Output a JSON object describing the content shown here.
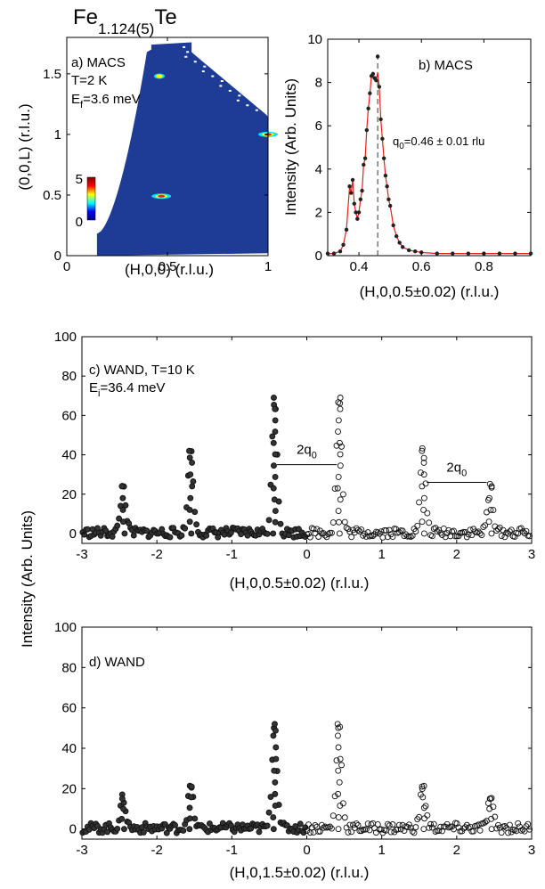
{
  "figure": {
    "title_main": "Fe",
    "title_sub": "1.124(5)",
    "title_tail": "Te",
    "shared_ylabel": "Intensity (Arb. Units)"
  },
  "chart_data": [
    {
      "panel": "a",
      "type": "heatmap",
      "annotation": "a) MACS",
      "annotation_lines": [
        "T=2 K",
        "E",
        "f",
        "=3.6 meV"
      ],
      "xlabel": "(H,0,0) (r.l.u.)",
      "ylabel": "(0,0,L) (r.l.u.)",
      "xlim": [
        0,
        1
      ],
      "ylim": [
        0,
        1.8
      ],
      "xticks": [
        0,
        0.5,
        1
      ],
      "xtick_labels": [
        "0",
        "0.5",
        "1"
      ],
      "yticks": [
        0,
        0.5,
        1,
        1.5
      ],
      "ytick_labels": [
        "0",
        "0.5",
        "1",
        "1.5"
      ],
      "colorbar": {
        "min": 0,
        "max": 5,
        "tick_labels": [
          "5",
          "0"
        ]
      },
      "colormap": [
        "#00007f",
        "#0000ff",
        "#00ffff",
        "#ffff00",
        "#ff0000",
        "#7f0000"
      ],
      "background_color": "#1e3c96",
      "hot_spots": [
        {
          "h": 0.47,
          "l": 0.49,
          "level": 5
        },
        {
          "h": 0.46,
          "l": 1.48,
          "level": 2
        },
        {
          "h": 1.0,
          "l": 1.0,
          "level": 4
        }
      ]
    },
    {
      "panel": "b",
      "type": "scatter",
      "annotation": "b) MACS",
      "xlabel": "(H,0,0.5±0.02) (r.l.u.)",
      "ylabel": "Intensity (Arb. Units)",
      "xlim": [
        0.3,
        0.95
      ],
      "ylim": [
        0,
        10
      ],
      "xticks": [
        0.4,
        0.6,
        0.8
      ],
      "xtick_labels": [
        "0.4",
        "0.6",
        "0.8"
      ],
      "yticks": [
        0,
        2,
        4,
        6,
        8,
        10
      ],
      "ytick_labels": [
        "0",
        "2",
        "4",
        "6",
        "8",
        "10"
      ],
      "q0_label": "q",
      "q0_sub": "0",
      "q0_value": "=0.46 ± 0.01 rlu",
      "dashed_line_x": 0.46,
      "fit_color": "#e8201a",
      "series": [
        {
          "marker": "filled",
          "x": [
            0.3,
            0.32,
            0.34,
            0.35,
            0.36,
            0.37,
            0.375,
            0.38,
            0.385,
            0.39,
            0.395,
            0.4,
            0.405,
            0.41,
            0.415,
            0.42,
            0.425,
            0.43,
            0.435,
            0.44,
            0.445,
            0.45,
            0.455,
            0.46,
            0.465,
            0.47,
            0.475,
            0.48,
            0.485,
            0.49,
            0.495,
            0.5,
            0.51,
            0.52,
            0.53,
            0.54,
            0.56,
            0.58,
            0.6,
            0.65,
            0.7,
            0.75,
            0.8,
            0.85,
            0.9,
            0.95
          ],
          "y": [
            0.1,
            0.1,
            0.2,
            0.5,
            1.2,
            3.2,
            2.9,
            3.5,
            2.4,
            2.0,
            1.7,
            2.0,
            2.6,
            3.0,
            4.2,
            4.5,
            5.8,
            6.8,
            7.5,
            8.3,
            8.4,
            8.2,
            8.1,
            9.2,
            7.8,
            6.3,
            5.4,
            4.5,
            3.7,
            3.2,
            2.6,
            2.3,
            1.4,
            0.9,
            0.6,
            0.4,
            0.25,
            0.2,
            0.15,
            0.1,
            0.1,
            0.1,
            0.1,
            0.1,
            0.1,
            0.1
          ]
        }
      ]
    },
    {
      "panel": "c",
      "type": "scatter",
      "annotation": "c) WAND, T=10 K",
      "annotation2_main": "E",
      "annotation2_sub": "i",
      "annotation2_tail": "=36.4 meV",
      "xlabel": "(H,0,0.5±0.02) (r.l.u.)",
      "ylabel": "Intensity (Arb. Units)",
      "xlim": [
        -3,
        3
      ],
      "ylim": [
        -5,
        100
      ],
      "xticks": [
        -3,
        -2,
        -1,
        0,
        1,
        2,
        3
      ],
      "xtick_labels": [
        "-3",
        "-2",
        "-1",
        "0",
        "1",
        "2",
        "3"
      ],
      "yticks": [
        0,
        20,
        40,
        60,
        80,
        100
      ],
      "ytick_labels": [
        "0",
        "20",
        "40",
        "60",
        "80",
        "100"
      ],
      "bracket_labels": [
        {
          "main": "2q",
          "sub": "0",
          "x_from": -0.4,
          "x_to": 0.4,
          "y": 35
        },
        {
          "main": "2q",
          "sub": "0",
          "x_from": 1.6,
          "x_to": 2.4,
          "y": 26
        }
      ],
      "peaks": [
        {
          "x": -2.45,
          "height": 24,
          "marker": "filled"
        },
        {
          "x": -1.55,
          "height": 42,
          "marker": "filled"
        },
        {
          "x": -0.43,
          "height": 69,
          "marker": "filled"
        },
        {
          "x": 0.43,
          "height": 69,
          "marker": "open"
        },
        {
          "x": 1.55,
          "height": 42,
          "marker": "open"
        },
        {
          "x": 2.45,
          "height": 24,
          "marker": "open"
        }
      ],
      "series": [
        {
          "name": "",
          "marker": "filled",
          "x_range": [
            -3,
            0
          ]
        },
        {
          "name": "",
          "marker": "open",
          "x_range": [
            0,
            3
          ]
        }
      ]
    },
    {
      "panel": "d",
      "type": "scatter",
      "annotation": "d) WAND",
      "xlabel": "(H,0,1.5±0.02) (r.l.u.)",
      "ylabel": "Intensity (Arb. Units)",
      "xlim": [
        -3,
        3
      ],
      "ylim": [
        -5,
        100
      ],
      "xticks": [
        -3,
        -2,
        -1,
        0,
        1,
        2,
        3
      ],
      "xtick_labels": [
        "-3",
        "-2",
        "-1",
        "0",
        "1",
        "2",
        "3"
      ],
      "yticks": [
        0,
        20,
        40,
        60,
        80,
        100
      ],
      "ytick_labels": [
        "0",
        "20",
        "40",
        "60",
        "80",
        "100"
      ],
      "peaks": [
        {
          "x": -2.45,
          "height": 15,
          "marker": "filled"
        },
        {
          "x": -1.55,
          "height": 21,
          "marker": "filled"
        },
        {
          "x": -0.43,
          "height": 52,
          "marker": "filled"
        },
        {
          "x": 0.43,
          "height": 52,
          "marker": "open"
        },
        {
          "x": 1.55,
          "height": 21,
          "marker": "open"
        },
        {
          "x": 2.45,
          "height": 15,
          "marker": "open"
        }
      ],
      "series": [
        {
          "name": "",
          "marker": "filled",
          "x_range": [
            -3,
            0
          ]
        },
        {
          "name": "",
          "marker": "open",
          "x_range": [
            0,
            3
          ]
        }
      ]
    }
  ]
}
